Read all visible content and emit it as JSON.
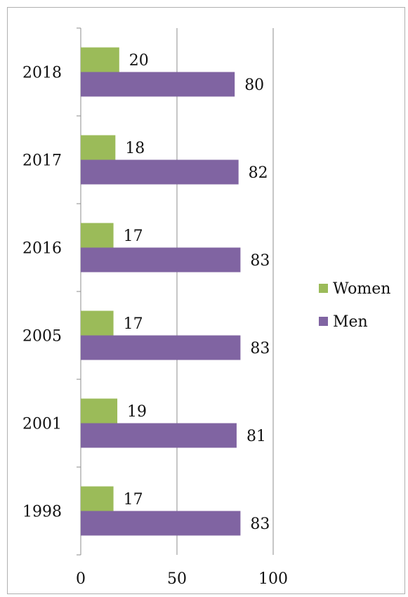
{
  "chart_data": {
    "type": "bar",
    "orientation": "horizontal",
    "categories": [
      "1998",
      "2001",
      "2005",
      "2016",
      "2017",
      "2018"
    ],
    "series": [
      {
        "name": "Women",
        "values": [
          17,
          19,
          17,
          17,
          18,
          20
        ],
        "color": "#9bbb59"
      },
      {
        "name": "Men",
        "values": [
          83,
          81,
          83,
          83,
          82,
          80
        ],
        "color": "#8064a2"
      }
    ],
    "xlim": [
      0,
      100
    ],
    "xticks": [
      "0",
      "50",
      "100"
    ],
    "grid": true,
    "legend_position": "right",
    "data_labels": true,
    "title": "",
    "xlabel": "",
    "ylabel": ""
  }
}
